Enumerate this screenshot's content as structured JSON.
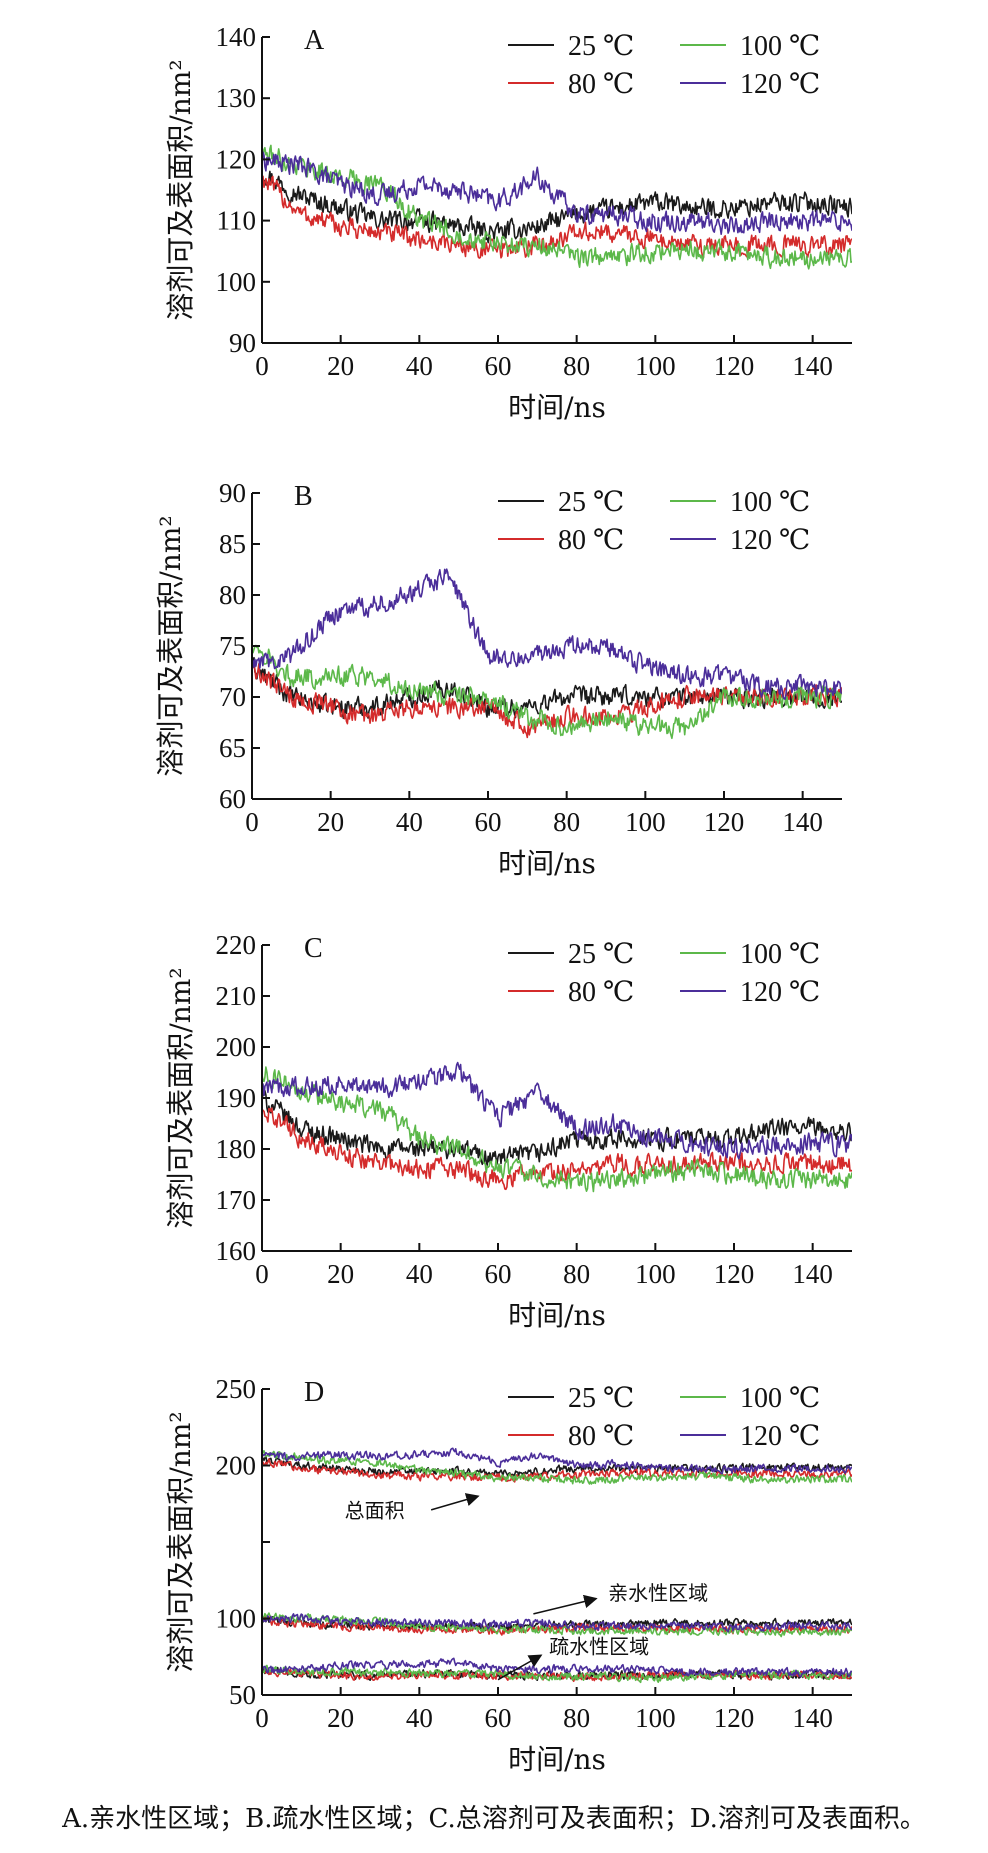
{
  "colors": {
    "25 ℃": "#1a1a1a",
    "80 ℃": "#d42b2b",
    "100 ℃": "#5cb84a",
    "120 ℃": "#4b2e9a"
  },
  "caption": "A.亲水性区域；B.疏水性区域；C.总溶剂可及表面积；D.溶剂可及表面积。",
  "chart_data": [
    {
      "type": "line",
      "panel": "A",
      "xlabel": "时间/ns",
      "ylabel": "溶剂可及表面积/nm²",
      "xlim": [
        0,
        150
      ],
      "ylim": [
        90,
        140
      ],
      "xticks": [
        0,
        20,
        40,
        60,
        80,
        100,
        120,
        140
      ],
      "yticks": [
        90,
        100,
        110,
        120,
        130,
        140
      ],
      "legend": [
        "25 ℃",
        "80 ℃",
        "100 ℃",
        "120 ℃"
      ],
      "x": [
        0,
        10,
        20,
        30,
        40,
        50,
        60,
        70,
        80,
        90,
        100,
        110,
        120,
        130,
        140,
        150
      ],
      "series": [
        {
          "name": "25 ℃",
          "values": [
            118,
            114,
            112,
            110,
            110,
            109,
            108,
            109,
            111,
            112,
            113,
            112,
            112,
            113,
            113,
            112
          ]
        },
        {
          "name": "80 ℃",
          "values": [
            117,
            111,
            109,
            108,
            107,
            106,
            105,
            106,
            108,
            108,
            107,
            106,
            106,
            106,
            106,
            106
          ]
        },
        {
          "name": "100 ℃",
          "values": [
            121,
            119,
            117,
            116,
            110,
            108,
            106,
            106,
            104,
            104,
            105,
            105,
            105,
            104,
            104,
            104
          ]
        },
        {
          "name": "120 ℃",
          "values": [
            120,
            119,
            116,
            114,
            116,
            115,
            113,
            117,
            111,
            111,
            110,
            110,
            109,
            110,
            110,
            110
          ]
        }
      ]
    },
    {
      "type": "line",
      "panel": "B",
      "xlabel": "时间/ns",
      "ylabel": "溶剂可及表面积/nm²",
      "xlim": [
        0,
        150
      ],
      "ylim": [
        60,
        90
      ],
      "xticks": [
        0,
        20,
        40,
        60,
        80,
        100,
        120,
        140
      ],
      "yticks": [
        60,
        65,
        70,
        75,
        80,
        85,
        90
      ],
      "legend": [
        "25 ℃",
        "80 ℃",
        "100 ℃",
        "120 ℃"
      ],
      "x": [
        0,
        10,
        20,
        30,
        40,
        50,
        60,
        70,
        80,
        90,
        100,
        110,
        120,
        130,
        140,
        150
      ],
      "series": [
        {
          "name": "25 ℃",
          "values": [
            73,
            70,
            69,
            69,
            70,
            71,
            69,
            69,
            70,
            70,
            70,
            70,
            70,
            70,
            70,
            70
          ]
        },
        {
          "name": "80 ℃",
          "values": [
            73,
            70,
            69,
            68,
            69,
            69,
            69,
            67,
            68,
            68,
            69,
            70,
            70,
            70,
            70,
            70
          ]
        },
        {
          "name": "100 ℃",
          "values": [
            75,
            72,
            72,
            72,
            71,
            70,
            70,
            68,
            67,
            68,
            67,
            67,
            70,
            70,
            70,
            70
          ]
        },
        {
          "name": "120 ℃",
          "values": [
            73,
            74,
            78,
            79,
            80,
            82,
            74,
            74,
            75,
            75,
            73,
            72,
            72,
            71,
            71,
            71
          ]
        }
      ]
    },
    {
      "type": "line",
      "panel": "C",
      "xlabel": "时间/ns",
      "ylabel": "溶剂可及表面积/nm²",
      "xlim": [
        0,
        150
      ],
      "ylim": [
        160,
        220
      ],
      "xticks": [
        0,
        20,
        40,
        60,
        80,
        100,
        120,
        140
      ],
      "yticks": [
        160,
        170,
        180,
        190,
        200,
        210,
        220
      ],
      "legend": [
        "25 ℃",
        "80 ℃",
        "100 ℃",
        "120 ℃"
      ],
      "x": [
        0,
        10,
        20,
        30,
        40,
        50,
        60,
        70,
        80,
        90,
        100,
        110,
        120,
        130,
        140,
        150
      ],
      "series": [
        {
          "name": "25 ℃",
          "values": [
            190,
            184,
            182,
            180,
            180,
            180,
            178,
            179,
            182,
            182,
            182,
            182,
            182,
            184,
            184,
            183
          ]
        },
        {
          "name": "80 ℃",
          "values": [
            188,
            182,
            179,
            177,
            176,
            176,
            174,
            175,
            176,
            177,
            177,
            177,
            177,
            177,
            177,
            177
          ]
        },
        {
          "name": "100 ℃",
          "values": [
            195,
            191,
            189,
            188,
            182,
            180,
            176,
            175,
            173,
            174,
            175,
            176,
            175,
            174,
            174,
            174
          ]
        },
        {
          "name": "120 ℃",
          "values": [
            192,
            192,
            193,
            192,
            193,
            195,
            186,
            191,
            184,
            185,
            182,
            181,
            180,
            181,
            181,
            181
          ]
        }
      ]
    },
    {
      "type": "line",
      "panel": "D",
      "xlabel": "时间/ns",
      "ylabel": "溶剂可及表面积/nm²",
      "xlim": [
        0,
        150
      ],
      "ylim": [
        50,
        250
      ],
      "xticks": [
        0,
        20,
        40,
        60,
        80,
        100,
        120,
        140
      ],
      "yticks": [
        50,
        100,
        150,
        200,
        250
      ],
      "ytick_labels": [
        "50",
        "100",
        "",
        "200",
        "250"
      ],
      "legend": [
        "25 ℃",
        "80 ℃",
        "100 ℃",
        "120 ℃"
      ],
      "annotations": [
        "总面积",
        "亲水性区域",
        "疏水性区域"
      ],
      "x": [
        0,
        10,
        20,
        30,
        40,
        50,
        60,
        70,
        80,
        90,
        100,
        110,
        120,
        130,
        140,
        150
      ],
      "groups": [
        {
          "label": "总面积",
          "series": [
            {
              "name": "25 ℃",
              "values": [
                204,
                200,
                198,
                196,
                196,
                196,
                195,
                196,
                198,
                198,
                198,
                198,
                198,
                199,
                199,
                198
              ]
            },
            {
              "name": "80 ℃",
              "values": [
                203,
                198,
                196,
                194,
                193,
                193,
                192,
                193,
                194,
                195,
                195,
                195,
                195,
                195,
                195,
                195
              ]
            },
            {
              "name": "100 ℃",
              "values": [
                207,
                205,
                203,
                202,
                197,
                195,
                192,
                192,
                190,
                191,
                192,
                193,
                192,
                191,
                191,
                191
              ]
            },
            {
              "name": "120 ℃",
              "values": [
                206,
                206,
                207,
                206,
                207,
                209,
                202,
                206,
                200,
                201,
                199,
                198,
                197,
                198,
                198,
                198
              ]
            }
          ]
        },
        {
          "label": "亲水性区域",
          "series": [
            {
              "name": "25 ℃",
              "values": [
                99,
                97,
                96,
                95,
                95,
                95,
                94,
                95,
                96,
                96,
                97,
                97,
                97,
                97,
                97,
                97
              ]
            },
            {
              "name": "80 ℃",
              "values": [
                99,
                96,
                95,
                94,
                93,
                93,
                92,
                93,
                94,
                94,
                93,
                93,
                93,
                93,
                93,
                93
              ]
            },
            {
              "name": "100 ℃",
              "values": [
                101,
                100,
                99,
                98,
                95,
                94,
                93,
                93,
                92,
                92,
                92,
                92,
                92,
                91,
                91,
                91
              ]
            },
            {
              "name": "120 ℃",
              "values": [
                100,
                100,
                98,
                97,
                98,
                97,
                96,
                98,
                95,
                95,
                95,
                95,
                94,
                95,
                95,
                95
              ]
            }
          ]
        },
        {
          "label": "疏水性区域",
          "series": [
            {
              "name": "25 ℃",
              "values": [
                66,
                64,
                63,
                63,
                64,
                64,
                63,
                63,
                63,
                63,
                63,
                63,
                63,
                63,
                63,
                63
              ]
            },
            {
              "name": "80 ℃",
              "values": [
                66,
                64,
                63,
                62,
                63,
                63,
                63,
                62,
                62,
                62,
                63,
                63,
                63,
                63,
                63,
                63
              ]
            },
            {
              "name": "100 ℃",
              "values": [
                67,
                65,
                65,
                65,
                64,
                64,
                64,
                62,
                62,
                62,
                61,
                62,
                63,
                63,
                63,
                63
              ]
            },
            {
              "name": "120 ℃",
              "values": [
                66,
                67,
                69,
                70,
                70,
                71,
                67,
                67,
                67,
                67,
                66,
                65,
                65,
                65,
                65,
                65
              ]
            }
          ]
        }
      ]
    }
  ]
}
